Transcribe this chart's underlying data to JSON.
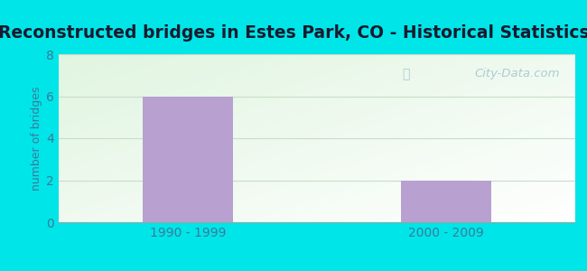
{
  "title": "Reconstructed bridges in Estes Park, CO - Historical Statistics",
  "categories": [
    "1990 - 1999",
    "2000 - 2009"
  ],
  "values": [
    6,
    2
  ],
  "bar_color": "#b8a0d0",
  "ylabel": "number of bridges",
  "ylim": [
    0,
    8
  ],
  "yticks": [
    0,
    2,
    4,
    6,
    8
  ],
  "title_fontsize": 13.5,
  "label_fontsize": 9,
  "tick_fontsize": 10,
  "bg_outer": "#00e5e8",
  "bg_plot": "#e8f5e8",
  "watermark": "City-Data.com",
  "bar_width": 0.35,
  "title_color": "#1a1a2e",
  "tick_color": "#3a7a9c",
  "ylabel_color": "#3a7a9c",
  "grid_color": "#c8ddc8",
  "watermark_color": "#a0c4d0"
}
